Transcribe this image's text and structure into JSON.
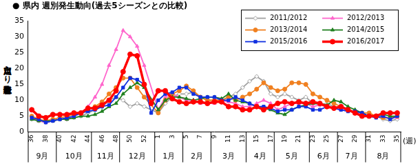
{
  "chart_data": {
    "type": "line",
    "title": "● 県内 週別発生動向(過去5シーズンとの比較)",
    "y_label": "定点当たり患者報告数",
    "x_label": "(週)",
    "categories": [
      "36",
      null,
      "38",
      null,
      "40",
      null,
      "42",
      null,
      "44",
      null,
      "46",
      null,
      "48",
      null,
      "50",
      null,
      "52",
      null,
      "1",
      null,
      "3",
      null,
      "5",
      null,
      "7",
      null,
      "9",
      null,
      "11",
      null,
      "13",
      null,
      "15",
      null,
      "17",
      null,
      "19",
      null,
      "21",
      null,
      "23",
      null,
      "25",
      null,
      "27",
      null,
      "29",
      null,
      "31",
      null,
      "33",
      null,
      "35"
    ],
    "month_groups": [
      {
        "label": "9月",
        "from": 0,
        "to": 3
      },
      {
        "label": "10月",
        "from": 4,
        "to": 8
      },
      {
        "label": "11月",
        "from": 9,
        "to": 12
      },
      {
        "label": "12月",
        "from": 13,
        "to": 17
      },
      {
        "label": "1月",
        "from": 18,
        "to": 21
      },
      {
        "label": "2月",
        "from": 22,
        "to": 25
      },
      {
        "label": "3月",
        "from": 26,
        "to": 30
      },
      {
        "label": "4月",
        "from": 31,
        "to": 34
      },
      {
        "label": "5月",
        "from": 35,
        "to": 39
      },
      {
        "label": "6月",
        "from": 40,
        "to": 43
      },
      {
        "label": "7月",
        "from": 44,
        "to": 47
      },
      {
        "label": "8月",
        "from": 48,
        "to": 52
      }
    ],
    "ylim": [
      0,
      35
    ],
    "yticks": [
      0,
      5,
      10,
      15,
      20,
      25,
      30,
      35
    ],
    "grid": false,
    "legend": "upper right",
    "series": [
      {
        "name": "2011/2012",
        "color": "#a0a0a0",
        "marker": "diamond",
        "values": [
          4,
          3.5,
          3,
          3.5,
          4,
          4,
          4.5,
          5,
          6,
          7,
          8,
          10,
          11,
          10,
          8,
          9,
          8,
          null,
          6,
          9,
          11,
          12,
          12,
          12.5,
          11,
          10,
          10,
          10,
          11,
          12,
          14,
          16,
          17.5,
          16,
          12,
          11,
          12,
          11,
          10,
          11,
          9,
          8.5,
          9,
          8,
          7.5,
          7,
          6,
          6,
          5,
          5,
          4,
          3.5,
          4
        ]
      },
      {
        "name": "2012/2013",
        "color": "#ff66cc",
        "marker": "triangle",
        "values": [
          4.5,
          3.5,
          3,
          3.5,
          4,
          4,
          5,
          6,
          8,
          11,
          15,
          21,
          26,
          32,
          30,
          27,
          21,
          null,
          7,
          11,
          12,
          11,
          10,
          10,
          9,
          9,
          9,
          10,
          9.5,
          9,
          8,
          8,
          9,
          10,
          9,
          7,
          8,
          9,
          9,
          9,
          8,
          8.5,
          8,
          7.5,
          7,
          7,
          6,
          5.5,
          5,
          5,
          4.5,
          4.5,
          4.5
        ]
      },
      {
        "name": "2013/2014",
        "color": "#f08020",
        "marker": "circle",
        "values": [
          5,
          4,
          3.5,
          4,
          4.5,
          5,
          5.5,
          6,
          7,
          8,
          9.5,
          12,
          14,
          17,
          17,
          14,
          11,
          null,
          6,
          10,
          12,
          13,
          14.5,
          13,
          11,
          10,
          10,
          10,
          11,
          10,
          11,
          12,
          13.5,
          15.5,
          14,
          13,
          13.5,
          15.5,
          15.5,
          15,
          12,
          11,
          10,
          9,
          8,
          7,
          6.5,
          6,
          6,
          5,
          4.5,
          4.5,
          5
        ]
      },
      {
        "name": "2014/2015",
        "color": "#208020",
        "marker": "triangle",
        "values": [
          4,
          3.5,
          3.5,
          3.5,
          4,
          4,
          4.5,
          5,
          5,
          5.5,
          6.5,
          8,
          9,
          12,
          14,
          15.5,
          14,
          null,
          7,
          10,
          11,
          11,
          10.5,
          10,
          10.5,
          11,
          11,
          10.5,
          12,
          10,
          9.5,
          9,
          8,
          7.5,
          7,
          6,
          5.5,
          7,
          8,
          8.5,
          9,
          9,
          8.5,
          10,
          9.5,
          8,
          7,
          6,
          5,
          5,
          5.5,
          5,
          5
        ]
      },
      {
        "name": "2015/2016",
        "color": "#1030e0",
        "marker": "square",
        "values": [
          4.5,
          4,
          3,
          3.5,
          4,
          4.5,
          5,
          6,
          6.5,
          7,
          8,
          8.5,
          11,
          14,
          17,
          16.5,
          15,
          6,
          10,
          12,
          12.5,
          14,
          14,
          12,
          11,
          11,
          11,
          10,
          10,
          11,
          10,
          9,
          8,
          8,
          7.5,
          6.5,
          7,
          7,
          8,
          8,
          7,
          7,
          8,
          7.5,
          7,
          6.5,
          6.5,
          6,
          5,
          4.5,
          5,
          4,
          5
        ]
      },
      {
        "name": "2016/2017",
        "color": "#ff0000",
        "marker": "circle",
        "values": [
          7,
          5,
          4.5,
          5.5,
          5.5,
          5.5,
          6,
          6,
          7.5,
          7.5,
          8.5,
          10,
          13,
          19,
          24.5,
          24,
          15,
          9,
          13,
          13,
          10.5,
          9.5,
          9,
          9.5,
          9.5,
          9,
          9.5,
          9.5,
          8,
          8,
          7,
          7,
          8,
          7,
          8,
          9,
          9.5,
          9,
          9.5,
          9,
          9.5,
          9,
          8,
          7.5,
          8,
          7,
          6,
          5,
          5,
          5,
          6,
          6,
          6
        ]
      }
    ]
  }
}
